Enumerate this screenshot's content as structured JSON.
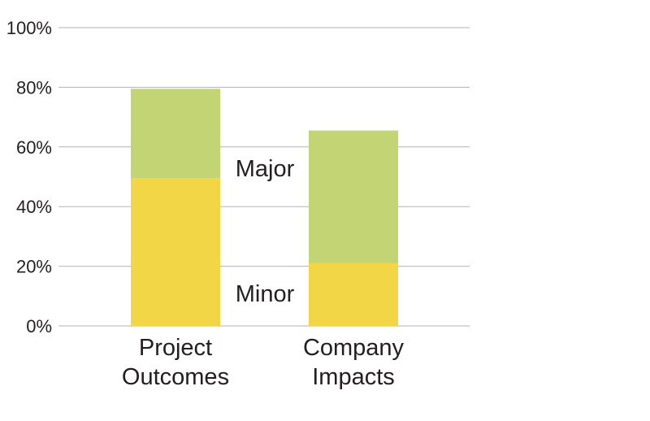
{
  "chart_data": {
    "type": "bar",
    "stacked": true,
    "categories": [
      [
        "Project",
        "Outcomes"
      ],
      [
        "Company",
        "Impacts"
      ]
    ],
    "series": [
      {
        "name": "Minor",
        "color": "#f2d645",
        "values": [
          49.5,
          21
        ]
      },
      {
        "name": "Major",
        "color": "#c2d473",
        "values": [
          30,
          44.5
        ]
      }
    ],
    "yticks": [
      "0%",
      "20%",
      "40%",
      "60%",
      "80%",
      "100%"
    ],
    "ylim": [
      0,
      100
    ],
    "grid": true,
    "legend": "inline labels between bars"
  }
}
